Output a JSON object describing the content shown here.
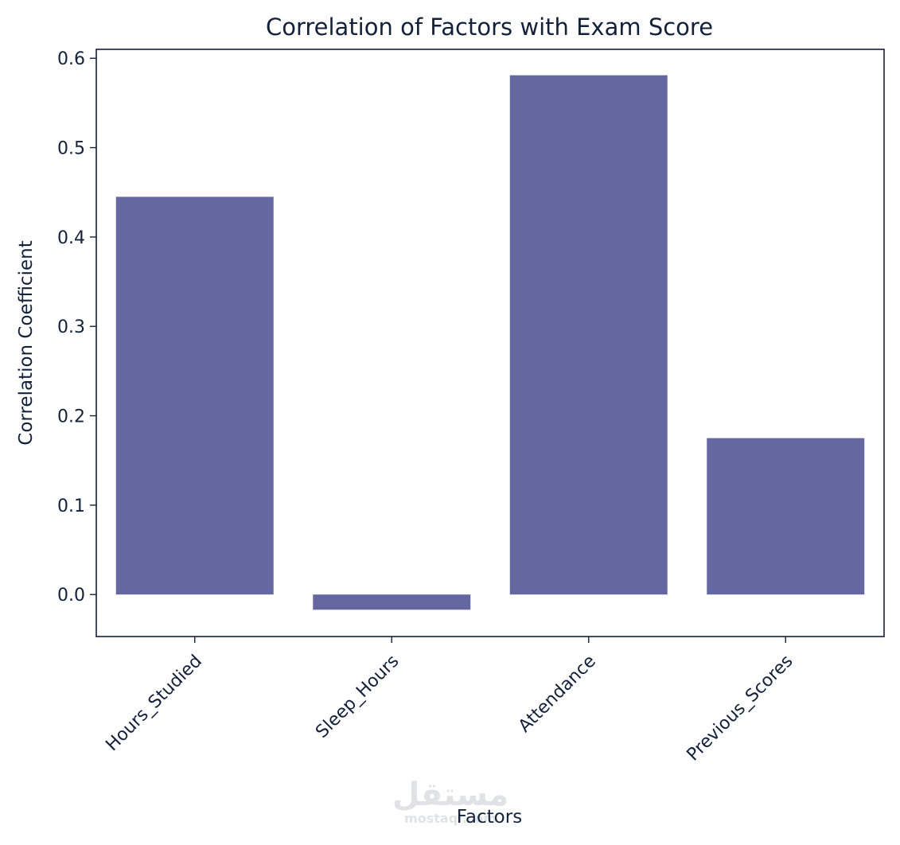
{
  "chart_data": {
    "type": "bar",
    "title": "Correlation of Factors with Exam Score",
    "xlabel": "Factors",
    "ylabel": "Correlation Coefficient",
    "categories": [
      "Hours_Studied",
      "Sleep_Hours",
      "Attendance",
      "Previous_Scores"
    ],
    "values": [
      0.445,
      -0.017,
      0.581,
      0.175
    ],
    "ylim": [
      -0.047,
      0.61
    ],
    "yticks": [
      "0.0",
      "0.1",
      "0.2",
      "0.3",
      "0.4",
      "0.5",
      "0.6"
    ],
    "grid": false,
    "bar_color": "#6568a0",
    "text_color": "#13213a"
  },
  "watermark": {
    "arabic": "مستقل",
    "latin": "mostaql.com"
  }
}
